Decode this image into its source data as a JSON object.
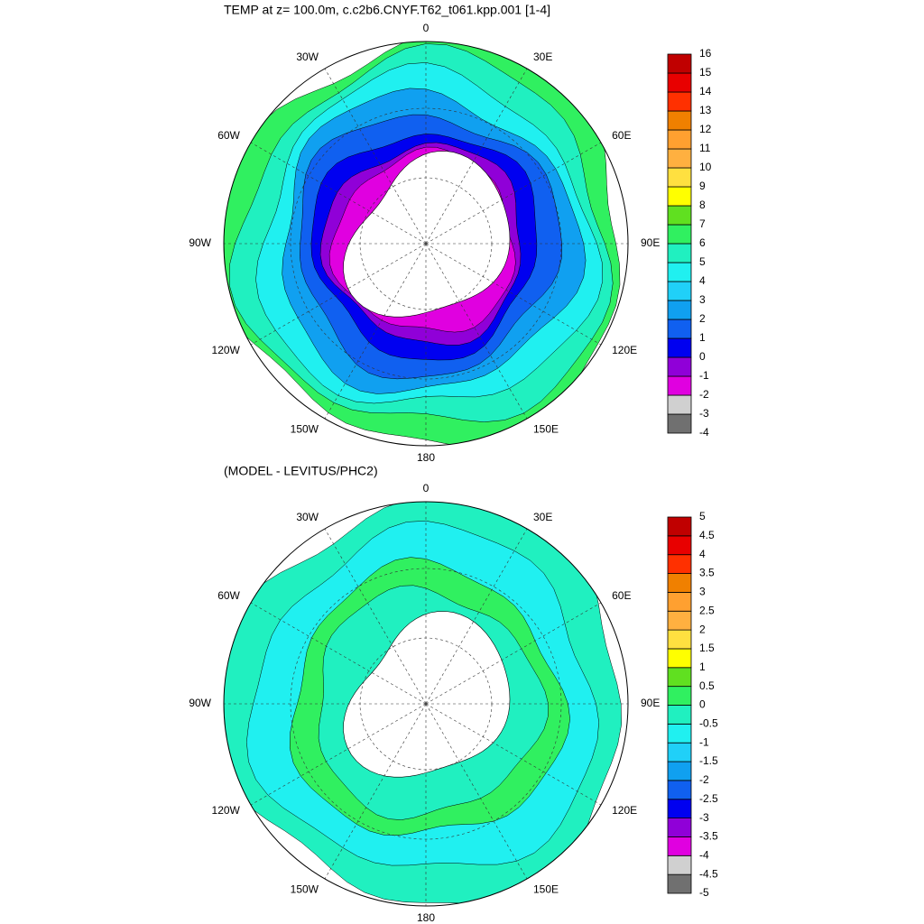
{
  "panels": [
    {
      "title": "TEMP at z= 100.0m, c.c2b6.CNYF.T62_t061.kpp.001 [1-4]",
      "lon_labels": [
        "0",
        "30E",
        "60E",
        "90E",
        "120E",
        "150E",
        "180",
        "150W",
        "120W",
        "90W",
        "60W",
        "30W"
      ],
      "colorbar": {
        "levels": [
          -4,
          -3,
          -2,
          -1,
          0,
          1,
          2,
          3,
          4,
          5,
          6,
          7,
          8,
          9,
          10,
          11,
          12,
          13,
          14,
          15,
          16
        ],
        "colors": [
          "#707070",
          "#d0d0d0",
          "#e000e0",
          "#9000d8",
          "#0000f0",
          "#1060f0",
          "#10a0f0",
          "#20d0f8",
          "#20f0f0",
          "#20f0c0",
          "#30f060",
          "#60e020",
          "#ffff00",
          "#ffe040",
          "#ffb040",
          "#ffa030",
          "#f08000",
          "#ff3000",
          "#e80000",
          "#c00000"
        ]
      }
    },
    {
      "title": "(MODEL - LEVITUS/PHC2)",
      "lon_labels": [
        "0",
        "30E",
        "60E",
        "90E",
        "120E",
        "150E",
        "180",
        "150W",
        "120W",
        "90W",
        "60W",
        "30W"
      ],
      "colorbar": {
        "levels": [
          -5,
          -4.5,
          -4,
          -3.5,
          -3,
          -2.5,
          -2,
          -1.5,
          -1,
          -0.5,
          0,
          0.5,
          1,
          1.5,
          2,
          2.5,
          3,
          3.5,
          4,
          4.5,
          5
        ],
        "colors": [
          "#707070",
          "#d0d0d0",
          "#e000e0",
          "#9000d8",
          "#0000f0",
          "#1060f0",
          "#10a0f0",
          "#20d0f8",
          "#20f0f0",
          "#20f0c0",
          "#30f060",
          "#60e020",
          "#ffff00",
          "#ffe040",
          "#ffb040",
          "#ffa030",
          "#f08000",
          "#ff3000",
          "#e80000",
          "#c00000"
        ]
      }
    }
  ]
}
